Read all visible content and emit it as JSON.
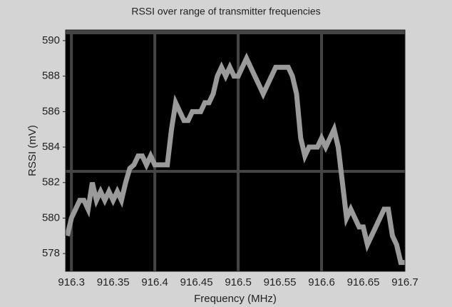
{
  "chart_data": {
    "type": "line",
    "title": "RSSI over range of transmitter frequencies",
    "x_label": "Frequency (MHz)",
    "y_label": "RSSI (mV)",
    "color": "#9a9a9a",
    "x": [
      916.295,
      916.3,
      916.305,
      916.31,
      916.315,
      916.32,
      916.325,
      916.33,
      916.335,
      916.34,
      916.345,
      916.35,
      916.355,
      916.36,
      916.365,
      916.37,
      916.375,
      916.38,
      916.385,
      916.39,
      916.395,
      916.4,
      916.405,
      916.41,
      916.415,
      916.42,
      916.425,
      916.43,
      916.435,
      916.44,
      916.445,
      916.45,
      916.455,
      916.46,
      916.465,
      916.47,
      916.475,
      916.48,
      916.485,
      916.49,
      916.495,
      916.5,
      916.505,
      916.51,
      916.515,
      916.52,
      916.525,
      916.53,
      916.535,
      916.54,
      916.545,
      916.55,
      916.555,
      916.56,
      916.565,
      916.57,
      916.575,
      916.58,
      916.585,
      916.59,
      916.595,
      916.6,
      916.605,
      916.61,
      916.615,
      916.62,
      916.625,
      916.63,
      916.635,
      916.64,
      916.645,
      916.65,
      916.655,
      916.66,
      916.665,
      916.67,
      916.675,
      916.68,
      916.685,
      916.69,
      916.695,
      916.7
    ],
    "values": [
      579,
      580,
      580.5,
      581,
      581,
      580.5,
      582,
      581,
      581.5,
      581,
      581.5,
      581,
      581.5,
      581,
      582,
      582.8,
      583,
      583.5,
      583.5,
      583,
      583.5,
      583,
      583,
      583,
      583,
      585,
      586.5,
      586,
      585.5,
      585.5,
      586,
      586,
      586,
      586.5,
      586.5,
      587,
      588,
      588.5,
      588,
      588.5,
      588,
      588,
      588.5,
      589,
      588.5,
      588,
      587.5,
      587,
      587.5,
      588,
      588.5,
      588.5,
      588.5,
      588.5,
      588,
      587,
      584.5,
      583.5,
      584,
      584,
      584,
      584.5,
      584,
      584.5,
      585,
      584,
      582,
      580,
      580.5,
      580,
      579.5,
      579.5,
      578.5,
      579,
      579.5,
      580,
      580.5,
      580.5,
      579,
      578.5,
      577.5,
      577.5
    ],
    "xlim": [
      916.293,
      916.7
    ],
    "ylim": [
      577,
      590.6
    ],
    "xticks": [
      916.3,
      916.35,
      916.4,
      916.45,
      916.5,
      916.55,
      916.6,
      916.65,
      916.7
    ],
    "yticks": [
      578,
      580,
      582,
      584,
      586,
      588,
      590
    ],
    "grid": true
  }
}
